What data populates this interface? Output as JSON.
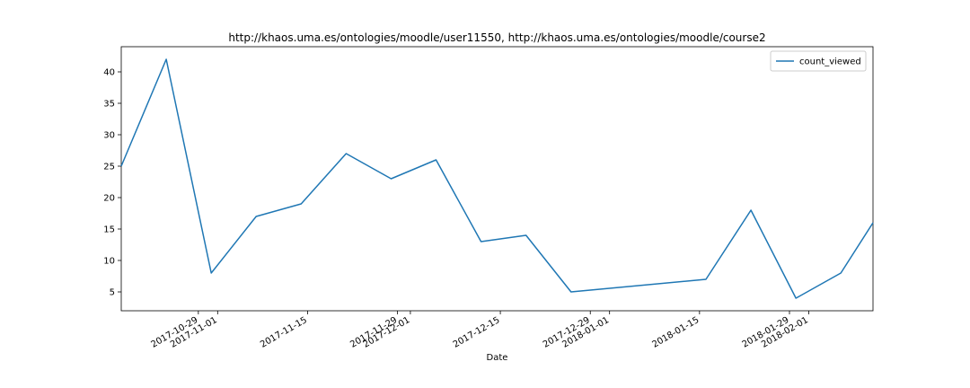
{
  "chart_data": {
    "type": "line",
    "title": "http://khaos.uma.es/ontologies/moodle/user11550, http://khaos.uma.es/ontologies/moodle/course2",
    "xlabel": "Date",
    "ylabel": "",
    "x_axis_type": "date",
    "xlim": [
      "2017-10-17",
      "2018-02-11"
    ],
    "ylim": [
      2,
      44
    ],
    "yticks": [
      5,
      10,
      15,
      20,
      25,
      30,
      35,
      40
    ],
    "xticks": [
      {
        "date": "2017-10-29",
        "label": "2017-10-29"
      },
      {
        "date": "2017-11-01",
        "label": "2017-11-01"
      },
      {
        "date": "2017-11-15",
        "label": "2017-11-15"
      },
      {
        "date": "2017-11-29",
        "label": "2017-11-29"
      },
      {
        "date": "2017-12-01",
        "label": "2017-12-01"
      },
      {
        "date": "2017-12-15",
        "label": "2017-12-15"
      },
      {
        "date": "2017-12-29",
        "label": "2017-12-29"
      },
      {
        "date": "2018-01-01",
        "label": "2018-01-01"
      },
      {
        "date": "2018-01-15",
        "label": "2018-01-15"
      },
      {
        "date": "2018-01-29",
        "label": "2018-01-29"
      },
      {
        "date": "2018-02-01",
        "label": "2018-02-01"
      }
    ],
    "series": [
      {
        "name": "count_viewed",
        "color": "#1f77b4",
        "x": [
          "2017-10-17",
          "2017-10-24",
          "2017-10-31",
          "2017-11-07",
          "2017-11-14",
          "2017-11-21",
          "2017-11-28",
          "2017-12-05",
          "2017-12-12",
          "2017-12-19",
          "2017-12-26",
          "2018-01-16",
          "2018-01-23",
          "2018-01-30",
          "2018-02-06",
          "2018-02-11"
        ],
        "values": [
          25,
          42,
          8,
          17,
          19,
          27,
          23,
          26,
          13,
          14,
          5,
          7,
          18,
          4,
          8,
          16
        ]
      }
    ],
    "legend_position": "top-right",
    "grid": false
  }
}
